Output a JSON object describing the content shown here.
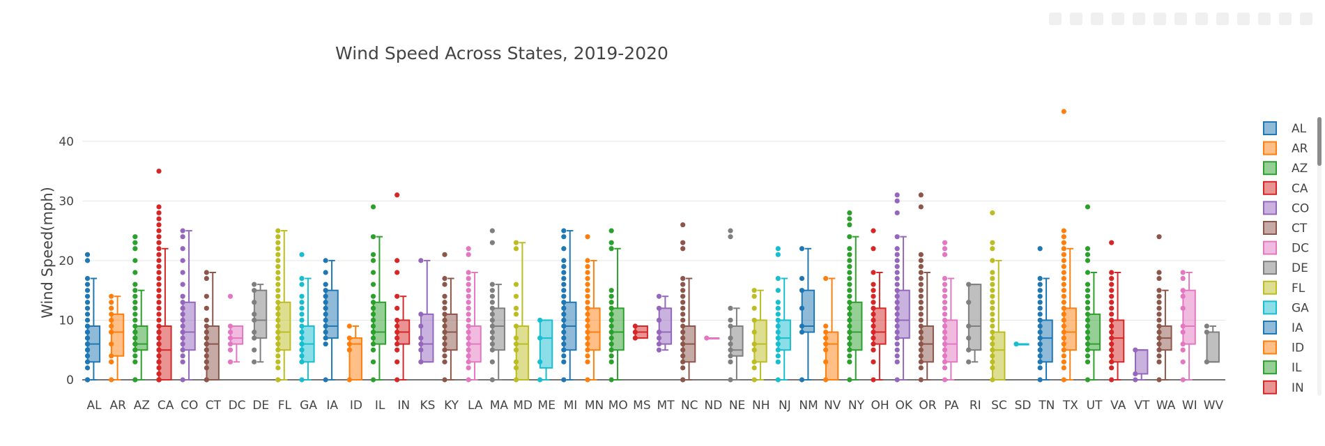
{
  "chart_data": {
    "type": "box",
    "title": "Wind Speed Across States, 2019-2020",
    "xlabel": "",
    "ylabel": "Wind Speed(mph)",
    "ylim": [
      0,
      45
    ],
    "yticks": [
      0,
      10,
      20,
      30,
      40
    ],
    "grid": true,
    "legend_placement": "right",
    "boxpoints": "all",
    "series": [
      {
        "name": "AL",
        "color": "#1f77b4",
        "q1": 3,
        "median": 6,
        "q3": 9,
        "low": 0,
        "high": 17,
        "points": [
          0,
          0,
          0,
          2,
          3,
          4,
          5,
          5,
          6,
          6,
          7,
          7,
          8,
          8,
          9,
          9,
          10,
          11,
          12,
          13,
          14,
          15,
          16,
          17,
          20,
          21
        ]
      },
      {
        "name": "AR",
        "color": "#ff7f0e",
        "q1": 4,
        "median": 8,
        "q3": 11,
        "low": 0,
        "high": 14,
        "points": [
          0,
          3,
          3,
          4,
          6,
          8,
          8,
          9,
          10,
          11,
          12,
          13,
          14
        ]
      },
      {
        "name": "AZ",
        "color": "#2ca02c",
        "q1": 5,
        "median": 6,
        "q3": 9,
        "low": 0,
        "high": 15,
        "points": [
          0,
          0,
          0,
          3,
          4,
          5,
          5,
          6,
          6,
          6,
          7,
          7,
          8,
          8,
          9,
          10,
          11,
          12,
          13,
          14,
          15,
          16,
          18,
          20,
          22,
          23,
          24
        ]
      },
      {
        "name": "CA",
        "color": "#d62728",
        "q1": 0,
        "median": 5,
        "q3": 9,
        "low": 0,
        "high": 22,
        "points": [
          0,
          0,
          0,
          0,
          1,
          2,
          3,
          3,
          4,
          5,
          5,
          6,
          6,
          7,
          7,
          8,
          8,
          9,
          10,
          11,
          12,
          13,
          14,
          15,
          16,
          17,
          18,
          19,
          20,
          21,
          22,
          23,
          24,
          25,
          26,
          27,
          28,
          29,
          35
        ]
      },
      {
        "name": "CO",
        "color": "#9467bd",
        "q1": 5,
        "median": 8,
        "q3": 13,
        "low": 0,
        "high": 25,
        "points": [
          0,
          3,
          4,
          5,
          6,
          7,
          8,
          8,
          9,
          10,
          11,
          12,
          13,
          14,
          16,
          18,
          20,
          22,
          24,
          25
        ]
      },
      {
        "name": "CT",
        "color": "#8c564b",
        "q1": 0,
        "median": 6,
        "q3": 9,
        "low": 0,
        "high": 18,
        "points": [
          0,
          0,
          2,
          3,
          4,
          5,
          6,
          6,
          7,
          8,
          9,
          10,
          12,
          14,
          17,
          18
        ]
      },
      {
        "name": "DC",
        "color": "#e377c2",
        "q1": 6,
        "median": 7,
        "q3": 9,
        "low": 3,
        "high": 9,
        "points": [
          3,
          5,
          6,
          7,
          8,
          9,
          14
        ]
      },
      {
        "name": "DE",
        "color": "#7f7f7f",
        "q1": 7,
        "median": 10,
        "q3": 15,
        "low": 3,
        "high": 16,
        "points": [
          3,
          5,
          7,
          8,
          10,
          11,
          13,
          15,
          16
        ]
      },
      {
        "name": "FL",
        "color": "#bcbd22",
        "q1": 5,
        "median": 8,
        "q3": 13,
        "low": 0,
        "high": 25,
        "points": [
          0,
          0,
          2,
          3,
          4,
          5,
          6,
          7,
          7,
          8,
          8,
          9,
          10,
          11,
          12,
          13,
          14,
          15,
          16,
          17,
          18,
          19,
          20,
          21,
          22,
          23,
          24,
          25
        ]
      },
      {
        "name": "GA",
        "color": "#17becf",
        "q1": 3,
        "median": 6,
        "q3": 9,
        "low": 0,
        "high": 17,
        "points": [
          0,
          3,
          4,
          5,
          5,
          6,
          6,
          7,
          8,
          9,
          10,
          11,
          12,
          13,
          14,
          16,
          17,
          21
        ]
      },
      {
        "name": "IA",
        "color": "#1f77b4",
        "q1": 7,
        "median": 9,
        "q3": 15,
        "low": 0,
        "high": 20,
        "points": [
          0,
          6,
          7,
          8,
          9,
          10,
          11,
          12,
          13,
          14,
          15,
          16,
          18,
          20
        ]
      },
      {
        "name": "ID",
        "color": "#ff7f0e",
        "q1": 0,
        "median": 6,
        "q3": 7,
        "low": 0,
        "high": 9,
        "points": [
          0,
          5,
          6,
          7,
          9
        ]
      },
      {
        "name": "IL",
        "color": "#2ca02c",
        "q1": 6,
        "median": 8,
        "q3": 13,
        "low": 0,
        "high": 24,
        "points": [
          0,
          3,
          5,
          6,
          7,
          8,
          8,
          9,
          10,
          11,
          12,
          13,
          14,
          16,
          18,
          20,
          21,
          24,
          29
        ]
      },
      {
        "name": "IN",
        "color": "#d62728",
        "q1": 6,
        "median": 8,
        "q3": 10,
        "low": 0,
        "high": 14,
        "points": [
          0,
          3,
          5,
          6,
          7,
          8,
          9,
          10,
          12,
          14,
          18,
          20,
          31
        ]
      },
      {
        "name": "KS",
        "color": "#9467bd",
        "q1": 3,
        "median": 6,
        "q3": 11,
        "low": 3,
        "high": 20,
        "points": [
          3,
          5,
          6,
          7,
          9,
          11,
          20
        ]
      },
      {
        "name": "KY",
        "color": "#8c564b",
        "q1": 5,
        "median": 8,
        "q3": 11,
        "low": 0,
        "high": 17,
        "points": [
          0,
          3,
          4,
          5,
          6,
          7,
          8,
          9,
          10,
          11,
          12,
          13,
          14,
          16,
          17,
          21
        ]
      },
      {
        "name": "LA",
        "color": "#e377c2",
        "q1": 3,
        "median": 6,
        "q3": 9,
        "low": 0,
        "high": 18,
        "points": [
          0,
          2,
          3,
          4,
          5,
          6,
          7,
          8,
          9,
          10,
          11,
          12,
          13,
          14,
          15,
          16,
          17,
          18,
          21,
          22
        ]
      },
      {
        "name": "MA",
        "color": "#7f7f7f",
        "q1": 5,
        "median": 9,
        "q3": 12,
        "low": 0,
        "high": 16,
        "points": [
          0,
          3,
          5,
          6,
          7,
          8,
          9,
          10,
          11,
          12,
          13,
          14,
          15,
          16,
          23,
          25
        ]
      },
      {
        "name": "MD",
        "color": "#bcbd22",
        "q1": 0,
        "median": 6,
        "q3": 9,
        "low": 0,
        "high": 23,
        "points": [
          0,
          2,
          3,
          5,
          6,
          7,
          9,
          11,
          12,
          14,
          16,
          22,
          23
        ]
      },
      {
        "name": "ME",
        "color": "#17becf",
        "q1": 2,
        "median": 7,
        "q3": 10,
        "low": 0,
        "high": 10,
        "points": [
          0,
          3,
          7,
          10
        ]
      },
      {
        "name": "MI",
        "color": "#1f77b4",
        "q1": 5,
        "median": 9,
        "q3": 13,
        "low": 0,
        "high": 25,
        "points": [
          0,
          3,
          4,
          5,
          6,
          7,
          8,
          9,
          10,
          11,
          12,
          13,
          14,
          15,
          16,
          17,
          18,
          19,
          20,
          22,
          24,
          25
        ]
      },
      {
        "name": "MN",
        "color": "#ff7f0e",
        "q1": 5,
        "median": 8,
        "q3": 12,
        "low": 0,
        "high": 20,
        "points": [
          0,
          3,
          4,
          5,
          6,
          7,
          8,
          9,
          10,
          11,
          12,
          13,
          14,
          15,
          16,
          17,
          18,
          19,
          20,
          24
        ]
      },
      {
        "name": "MO",
        "color": "#2ca02c",
        "q1": 5,
        "median": 8,
        "q3": 12,
        "low": 0,
        "high": 22,
        "points": [
          0,
          3,
          4,
          5,
          6,
          7,
          8,
          9,
          10,
          11,
          12,
          13,
          14,
          15,
          22,
          23,
          25
        ]
      },
      {
        "name": "MS",
        "color": "#d62728",
        "q1": 7,
        "median": 8,
        "q3": 9,
        "low": 7,
        "high": 9,
        "points": [
          7,
          8,
          9
        ]
      },
      {
        "name": "MT",
        "color": "#9467bd",
        "q1": 6,
        "median": 8,
        "q3": 12,
        "low": 5,
        "high": 14,
        "points": [
          5,
          6,
          7,
          8,
          10,
          12,
          14
        ]
      },
      {
        "name": "NC",
        "color": "#8c564b",
        "q1": 3,
        "median": 6,
        "q3": 9,
        "low": 0,
        "high": 17,
        "points": [
          0,
          0,
          2,
          3,
          4,
          5,
          6,
          7,
          8,
          9,
          10,
          11,
          12,
          13,
          14,
          15,
          16,
          17,
          22,
          23,
          26
        ]
      },
      {
        "name": "ND",
        "color": "#e377c2",
        "q1": 7,
        "median": 7,
        "q3": 7,
        "low": 7,
        "high": 7,
        "points": [
          7
        ]
      },
      {
        "name": "NE",
        "color": "#7f7f7f",
        "q1": 4,
        "median": 5,
        "q3": 9,
        "low": 0,
        "high": 12,
        "points": [
          0,
          3,
          4,
          5,
          6,
          7,
          9,
          10,
          12,
          24,
          25
        ]
      },
      {
        "name": "NH",
        "color": "#bcbd22",
        "q1": 3,
        "median": 6,
        "q3": 10,
        "low": 0,
        "high": 15,
        "points": [
          0,
          2,
          3,
          5,
          6,
          8,
          10,
          12,
          14,
          15
        ]
      },
      {
        "name": "NJ",
        "color": "#17becf",
        "q1": 5,
        "median": 7,
        "q3": 10,
        "low": 0,
        "high": 17,
        "points": [
          0,
          3,
          4,
          5,
          6,
          7,
          8,
          9,
          10,
          11,
          12,
          13,
          15,
          17,
          21,
          22
        ]
      },
      {
        "name": "NM",
        "color": "#1f77b4",
        "q1": 8,
        "median": 9,
        "q3": 15,
        "low": 0,
        "high": 22,
        "points": [
          0,
          8,
          9,
          12,
          15,
          17,
          22
        ]
      },
      {
        "name": "NV",
        "color": "#ff7f0e",
        "q1": 0,
        "median": 6,
        "q3": 8,
        "low": 0,
        "high": 17,
        "points": [
          0,
          3,
          5,
          6,
          7,
          8,
          9,
          17
        ]
      },
      {
        "name": "NY",
        "color": "#2ca02c",
        "q1": 5,
        "median": 8,
        "q3": 13,
        "low": 0,
        "high": 24,
        "points": [
          0,
          3,
          4,
          5,
          6,
          7,
          8,
          9,
          10,
          11,
          12,
          13,
          14,
          15,
          16,
          17,
          18,
          19,
          20,
          21,
          22,
          24,
          26,
          27,
          28
        ]
      },
      {
        "name": "OH",
        "color": "#d62728",
        "q1": 6,
        "median": 8,
        "q3": 12,
        "low": 0,
        "high": 18,
        "points": [
          0,
          3,
          5,
          6,
          7,
          8,
          9,
          10,
          11,
          12,
          13,
          14,
          15,
          16,
          18,
          22,
          25
        ]
      },
      {
        "name": "OK",
        "color": "#9467bd",
        "q1": 7,
        "median": 10,
        "q3": 15,
        "low": 0,
        "high": 24,
        "points": [
          0,
          3,
          4,
          5,
          6,
          7,
          8,
          9,
          10,
          11,
          12,
          13,
          14,
          15,
          16,
          17,
          18,
          19,
          20,
          21,
          22,
          24,
          28,
          30,
          31
        ]
      },
      {
        "name": "OR",
        "color": "#8c564b",
        "q1": 3,
        "median": 6,
        "q3": 9,
        "low": 0,
        "high": 18,
        "points": [
          0,
          2,
          3,
          4,
          5,
          6,
          7,
          8,
          9,
          10,
          11,
          12,
          13,
          14,
          15,
          16,
          17,
          18,
          19,
          20,
          21,
          29,
          31
        ]
      },
      {
        "name": "PA",
        "color": "#e377c2",
        "q1": 3,
        "median": 6,
        "q3": 10,
        "low": 0,
        "high": 17,
        "points": [
          0,
          2,
          3,
          4,
          5,
          6,
          7,
          8,
          9,
          10,
          11,
          12,
          13,
          14,
          15,
          16,
          17,
          21,
          22,
          23
        ]
      },
      {
        "name": "RI",
        "color": "#7f7f7f",
        "q1": 5,
        "median": 9,
        "q3": 16,
        "low": 3,
        "high": 16,
        "points": [
          3,
          5,
          7,
          9,
          13,
          16
        ]
      },
      {
        "name": "SC",
        "color": "#bcbd22",
        "q1": 0,
        "median": 5,
        "q3": 8,
        "low": 0,
        "high": 20,
        "points": [
          0,
          2,
          3,
          4,
          5,
          6,
          7,
          8,
          9,
          10,
          11,
          12,
          13,
          14,
          15,
          16,
          17,
          18,
          20,
          22,
          23,
          28
        ]
      },
      {
        "name": "SD",
        "color": "#17becf",
        "q1": 6,
        "median": 6,
        "q3": 6,
        "low": 6,
        "high": 6,
        "points": [
          6
        ]
      },
      {
        "name": "TN",
        "color": "#1f77b4",
        "q1": 3,
        "median": 7,
        "q3": 10,
        "low": 0,
        "high": 17,
        "points": [
          0,
          2,
          3,
          4,
          5,
          6,
          7,
          8,
          9,
          10,
          11,
          12,
          13,
          14,
          15,
          16,
          17,
          22
        ]
      },
      {
        "name": "TX",
        "color": "#ff7f0e",
        "q1": 5,
        "median": 8,
        "q3": 12,
        "low": 0,
        "high": 22,
        "points": [
          0,
          2,
          3,
          4,
          5,
          6,
          7,
          8,
          9,
          10,
          11,
          12,
          13,
          14,
          15,
          16,
          17,
          18,
          19,
          20,
          21,
          22,
          23,
          24,
          25,
          45
        ]
      },
      {
        "name": "UT",
        "color": "#2ca02c",
        "q1": 5,
        "median": 6,
        "q3": 11,
        "low": 0,
        "high": 18,
        "points": [
          0,
          3,
          4,
          5,
          6,
          7,
          8,
          9,
          10,
          11,
          12,
          13,
          14,
          15,
          16,
          18,
          20,
          21,
          22,
          29
        ]
      },
      {
        "name": "VA",
        "color": "#d62728",
        "q1": 3,
        "median": 7,
        "q3": 10,
        "low": 0,
        "high": 18,
        "points": [
          0,
          2,
          3,
          4,
          5,
          6,
          7,
          8,
          9,
          10,
          11,
          12,
          13,
          14,
          15,
          16,
          17,
          18,
          23
        ]
      },
      {
        "name": "VT",
        "color": "#9467bd",
        "q1": 1,
        "median": 5,
        "q3": 5,
        "low": 0,
        "high": 5,
        "points": [
          0,
          1,
          5
        ]
      },
      {
        "name": "WA",
        "color": "#8c564b",
        "q1": 5,
        "median": 7,
        "q3": 9,
        "low": 0,
        "high": 15,
        "points": [
          0,
          3,
          4,
          5,
          6,
          7,
          8,
          9,
          10,
          11,
          12,
          13,
          14,
          15,
          17,
          18,
          24
        ]
      },
      {
        "name": "WI",
        "color": "#e377c2",
        "q1": 6,
        "median": 9,
        "q3": 15,
        "low": 0,
        "high": 18,
        "points": [
          0,
          3,
          5,
          6,
          8,
          9,
          12,
          14,
          15,
          17,
          18
        ]
      },
      {
        "name": "WV",
        "color": "#7f7f7f",
        "q1": 3,
        "median": 3,
        "q3": 8,
        "low": 3,
        "high": 9,
        "points": [
          3,
          8,
          9
        ]
      }
    ]
  },
  "legend": {
    "items": [
      "AL",
      "AR",
      "AZ",
      "CA",
      "CO",
      "CT",
      "DC",
      "DE",
      "FL",
      "GA",
      "IA",
      "ID",
      "IL",
      "IN"
    ],
    "colors": [
      "#1f77b4",
      "#ff7f0e",
      "#2ca02c",
      "#d62728",
      "#9467bd",
      "#8c564b",
      "#e377c2",
      "#7f7f7f",
      "#bcbd22",
      "#17becf",
      "#1f77b4",
      "#ff7f0e",
      "#2ca02c",
      "#d62728"
    ]
  }
}
